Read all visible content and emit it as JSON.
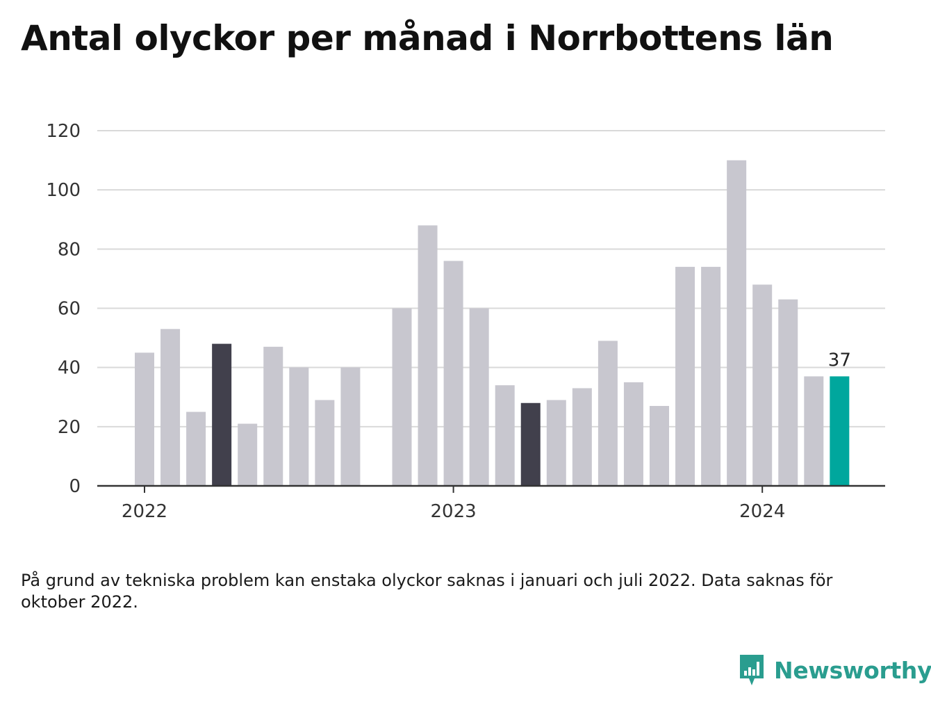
{
  "title": "Antal olyckor per månad i Norrbottens län",
  "footnote": "På grund av tekniska problem kan enstaka olyckor saknas i januari och juli 2022. Data saknas för oktober 2022.",
  "brand": {
    "name": "Newsworthy",
    "icon": "newsworthy-logo-icon"
  },
  "colors": {
    "default": "#c8c7cf",
    "dark": "#41404c",
    "highlight": "#00a79d",
    "grid": "#d9d9d9",
    "axis": "#333333"
  },
  "chart_data": {
    "type": "bar",
    "title": "Antal olyckor per månad i Norrbottens län",
    "xlabel": "",
    "ylabel": "",
    "ylim": [
      0,
      120
    ],
    "yticks": [
      0,
      20,
      40,
      60,
      80,
      100,
      120
    ],
    "grid": true,
    "x_tick_labels": [
      {
        "label": "2022",
        "category": "2022-01"
      },
      {
        "label": "2023",
        "category": "2023-01"
      },
      {
        "label": "2024",
        "category": "2024-01"
      }
    ],
    "categories": [
      "2022-01",
      "2022-02",
      "2022-03",
      "2022-04",
      "2022-05",
      "2022-06",
      "2022-07",
      "2022-08",
      "2022-09",
      "2022-10",
      "2022-11",
      "2022-12",
      "2023-01",
      "2023-02",
      "2023-03",
      "2023-04",
      "2023-05",
      "2023-06",
      "2023-07",
      "2023-08",
      "2023-09",
      "2023-10",
      "2023-11",
      "2023-12",
      "2024-01",
      "2024-02",
      "2024-03",
      "2024-04"
    ],
    "values": [
      45,
      53,
      25,
      48,
      21,
      47,
      40,
      29,
      40,
      null,
      60,
      88,
      76,
      60,
      34,
      28,
      29,
      33,
      49,
      35,
      27,
      74,
      74,
      110,
      68,
      63,
      37,
      37
    ],
    "highlight": {
      "dark": [
        "2022-04",
        "2023-04"
      ],
      "accent": "2024-04"
    },
    "data_labels": [
      {
        "category": "2024-04",
        "text": "37"
      }
    ]
  }
}
